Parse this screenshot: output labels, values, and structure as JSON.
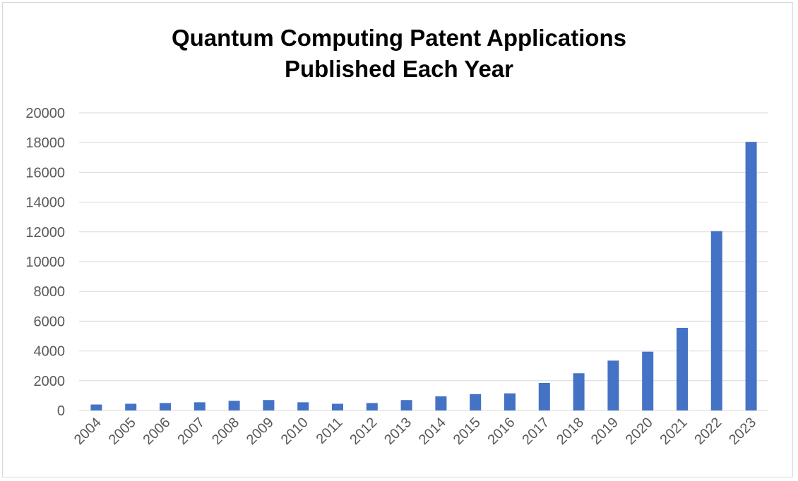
{
  "chart_data": {
    "type": "bar",
    "title": "Quantum Computing Patent Applications",
    "subtitle": "Published Each Year",
    "xlabel": "",
    "ylabel": "",
    "categories": [
      "2004",
      "2005",
      "2006",
      "2007",
      "2008",
      "2009",
      "2010",
      "2011",
      "2012",
      "2013",
      "2014",
      "2015",
      "2016",
      "2017",
      "2018",
      "2019",
      "2020",
      "2021",
      "2022",
      "2023"
    ],
    "values": [
      400,
      450,
      500,
      550,
      650,
      700,
      550,
      450,
      500,
      700,
      950,
      1100,
      1150,
      1850,
      2500,
      3350,
      3950,
      5550,
      12050,
      18050
    ],
    "ylim": [
      0,
      20000
    ],
    "yticks": [
      0,
      2000,
      4000,
      6000,
      8000,
      10000,
      12000,
      14000,
      16000,
      18000,
      20000
    ],
    "grid": true,
    "legend": "none",
    "bar_color": "#4472c4",
    "grid_color": "#d9d9d9"
  }
}
